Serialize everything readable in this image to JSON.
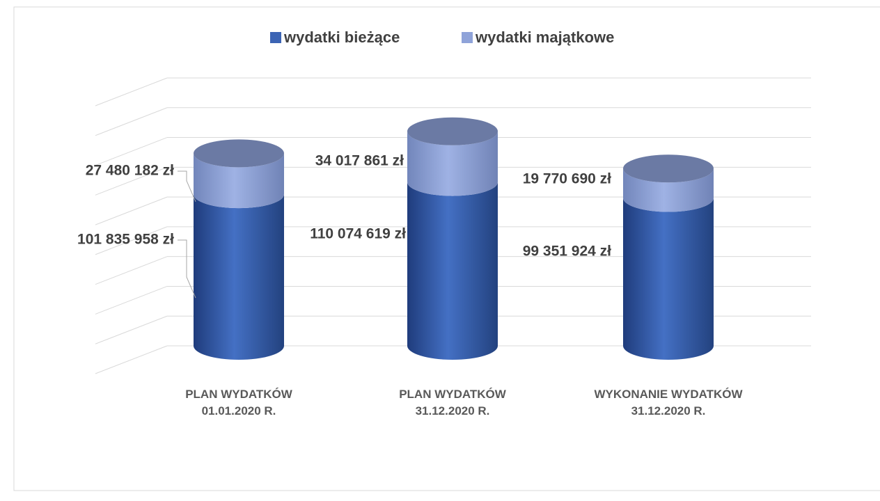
{
  "chart_data": {
    "type": "cylinder-stacked",
    "categories": [
      "PLAN WYDATKÓW\n01.01.2020 R.",
      "PLAN WYDATKÓW\n31.12.2020 R.",
      "WYKONANIE WYDATKÓW\n31.12.2020 R."
    ],
    "series": [
      {
        "name": "wydatki bieżące",
        "color": "#3c64b4",
        "values": [
          101835958,
          110074619,
          99351924
        ],
        "value_labels": [
          "101 835 958 zł",
          "110 074 619 zł",
          "99 351 924 zł"
        ]
      },
      {
        "name": "wydatki majątkowe",
        "color": "#8fa3d9",
        "values": [
          27480182,
          34017861,
          19770690
        ],
        "value_labels": [
          "27 480 182 zł",
          "34 017 861 zł",
          "19 770 690 zł"
        ]
      }
    ],
    "ylim": [
      0,
      180000000
    ],
    "yticks": [
      0,
      20000000,
      40000000,
      60000000,
      80000000,
      100000000,
      120000000,
      140000000,
      160000000,
      180000000
    ],
    "grid": true,
    "legend": "top"
  }
}
